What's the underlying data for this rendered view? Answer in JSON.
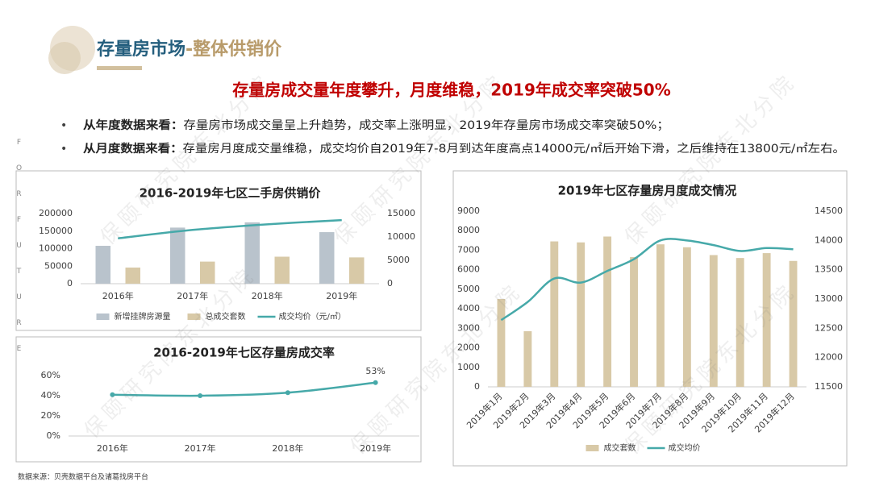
{
  "header": {
    "title": "存量房市场",
    "subtitle": "-整体供销价"
  },
  "headline": "存量房成交量年度攀升，月度维稳，2019年成交率突破50%",
  "bullets": [
    {
      "label": "从年度数据来看：",
      "text": "存量房市场成交量呈上升趋势，成交率上涨明显，2019年存量房市场成交率突破50%；"
    },
    {
      "label": "从月度数据来看：",
      "text": "存量房月度成交量维稳，成交均价自2019年7-8月到达年度高点14000元/㎡后开始下滑，之后维持在13800元/㎡左右。"
    }
  ],
  "side_text": "FORFUTURE",
  "watermark": "保颐研究院东北分院",
  "source": "数据来源：贝壳数据平台及诸葛找房平台",
  "chart_data": [
    {
      "type": "bar",
      "title": "2016-2019年七区二手房供销价",
      "categories": [
        "2016年",
        "2017年",
        "2018年",
        "2019年"
      ],
      "series": [
        {
          "name": "新增挂牌房源量",
          "color": "#b9c3cc",
          "values": [
            108000,
            160000,
            175000,
            147000
          ]
        },
        {
          "name": "总成交套数",
          "color": "#d8c9a7",
          "values": [
            46000,
            63000,
            77000,
            75000
          ]
        },
        {
          "name": "成交均价（元/㎡）",
          "color": "#46a9a9",
          "type": "line",
          "axis": "y2",
          "values": [
            9700,
            11500,
            12700,
            13600
          ]
        }
      ],
      "ylim": [
        0,
        200000
      ],
      "yticks": [
        0,
        50000,
        100000,
        150000,
        200000
      ],
      "y2lim": [
        0,
        15000
      ],
      "y2ticks": [
        0,
        5000,
        10000,
        15000
      ],
      "legend": "bottom"
    },
    {
      "type": "line",
      "title": "2016-2019年七区存量房成交率",
      "categories": [
        "2016年",
        "2017年",
        "2018年",
        "2019年"
      ],
      "series": [
        {
          "color": "#46a9a9",
          "values": [
            41,
            40,
            43,
            53
          ],
          "value_labels": [
            null,
            null,
            null,
            "53%"
          ]
        }
      ],
      "ylim": [
        0,
        60
      ],
      "yticks": [
        {
          "value": 0,
          "label": "0%"
        },
        {
          "value": 20,
          "label": "20%"
        },
        {
          "value": 40,
          "label": "40%"
        },
        {
          "value": 60,
          "label": "60%"
        }
      ],
      "markers": true
    },
    {
      "type": "bar",
      "title": "2019年七区存量房月度成交情况",
      "categories": [
        "2019年1月",
        "2019年2月",
        "2019年3月",
        "2019年4月",
        "2019年5月",
        "2019年6月",
        "2019年7月",
        "2019年8月",
        "2019年9月",
        "2019年10月",
        "2019年11月",
        "2019年12月"
      ],
      "series": [
        {
          "name": "成交套数",
          "color": "#d8c9a7",
          "values": [
            4500,
            2850,
            7450,
            7400,
            7700,
            6650,
            7300,
            7150,
            6750,
            6600,
            6850,
            6450
          ]
        },
        {
          "name": "成交均价",
          "color": "#46a9a9",
          "type": "line",
          "axis": "y2",
          "values": [
            12640,
            12950,
            13350,
            13280,
            13480,
            13680,
            14000,
            14000,
            13920,
            13820,
            13870,
            13850
          ]
        }
      ],
      "ylim": [
        0,
        9000
      ],
      "yticks": [
        0,
        1000,
        2000,
        3000,
        4000,
        5000,
        6000,
        7000,
        8000,
        9000
      ],
      "y2lim": [
        11500,
        14500
      ],
      "y2ticks": [
        11500,
        12000,
        12500,
        13000,
        13500,
        14000,
        14500
      ],
      "legend": "bottom",
      "rotate_labels": true
    }
  ]
}
